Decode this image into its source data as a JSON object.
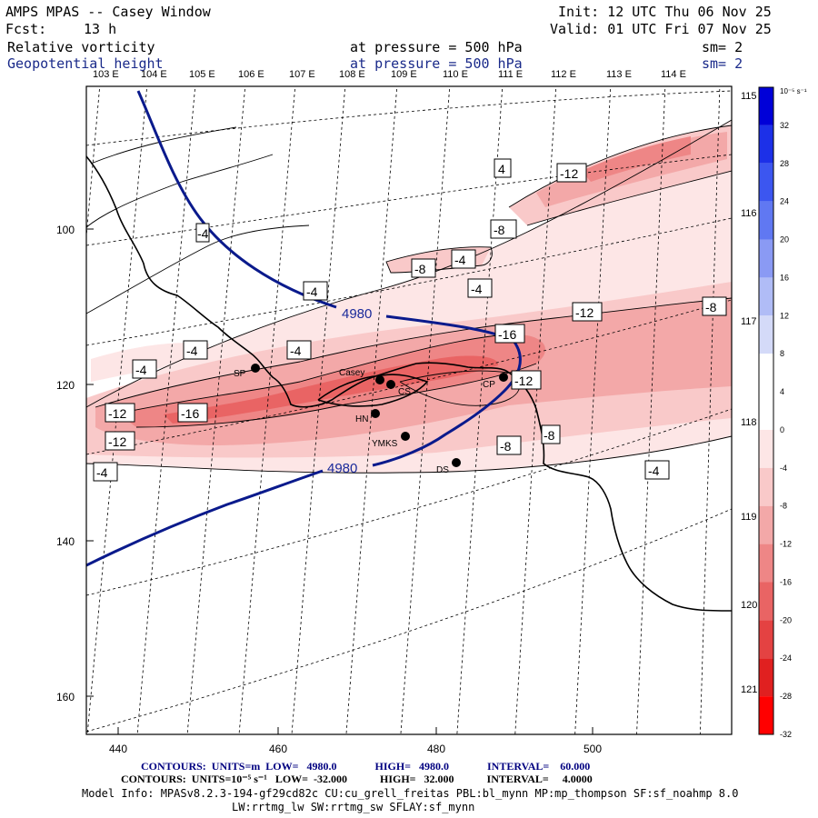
{
  "header": {
    "title": "AMPS MPAS -- Casey Window",
    "init": "Init: 12 UTC Thu 06 Nov 25",
    "forecast_label": "Fcst:",
    "forecast_value": "13 h",
    "valid": "Valid: 01 UTC Fri 07 Nov 25",
    "field1_name": "Relative vorticity",
    "field1_level": "at pressure =  500 hPa",
    "field1_sm": "sm= 2",
    "field2_name": "Geopotential height",
    "field2_level": "at pressure =  500 hPa",
    "field2_sm": "sm= 2"
  },
  "map": {
    "top_longitudes": [
      "103 E",
      "104 E",
      "105 E",
      "106 E",
      "107 E",
      "108 E",
      "109 E",
      "110 E",
      "111 E",
      "112 E",
      "113 E",
      "114 E"
    ],
    "right_longitudes": [
      "115 E",
      "116 E",
      "117 E",
      "118 E",
      "119 E",
      "120 E",
      "121 E"
    ],
    "x_ticks": [
      "440",
      "460",
      "480",
      "500"
    ],
    "y_ticks": [
      "100",
      "120",
      "140",
      "160"
    ],
    "vorticity_labels": [
      "-4",
      "-12",
      "-8",
      "-4",
      "-8",
      "-4",
      "-4",
      "-12",
      "-8",
      "-16",
      "-4",
      "-4",
      "-4",
      "-12",
      "-16",
      "-12",
      "-12",
      "-8",
      "-8",
      "-4",
      "-4",
      "4"
    ],
    "height_labels": [
      "4980",
      "4980"
    ],
    "stations": [
      "SP",
      "Casey",
      "CS",
      "HN",
      "YMKS",
      "CP",
      "DS"
    ]
  },
  "colorbar": {
    "unit": "10⁻⁵ s⁻¹",
    "labels": [
      "32",
      "28",
      "24",
      "20",
      "16",
      "12",
      "8",
      "4",
      "0",
      "-4",
      "-8",
      "-12",
      "-16",
      "-20",
      "-24",
      "-28",
      "-32"
    ],
    "colors": [
      "#0000d8",
      "#1c30e8",
      "#3c56f0",
      "#6078f2",
      "#8a9af4",
      "#b0bcf6",
      "#d4daf8",
      "#ffffff",
      "#ffffff",
      "#fde6e6",
      "#f9c9c9",
      "#f3a8a8",
      "#ee8686",
      "#e96464",
      "#e44242",
      "#e02020",
      "#ff0000"
    ]
  },
  "footer": {
    "contours_height": "CONTOURS:  UNITS=m  LOW=   4980.0              HIGH=   4980.0              INTERVAL=    60.000",
    "contours_vort": "CONTOURS:  UNITS=10⁻⁵ s⁻¹   LOW=  -32.000            HIGH=   32.000            INTERVAL=     4.0000",
    "model_info": "Model Info: MPASv8.2.3-194-gf29cd82c CU:cu_grell_freitas PBL:bl_mynn MP:mp_thompson SF:sf_noahmp 8.0",
    "model_info2": "LW:rrtmg_lw SW:rrtmg_sw SFLAY:sf_mynn"
  }
}
